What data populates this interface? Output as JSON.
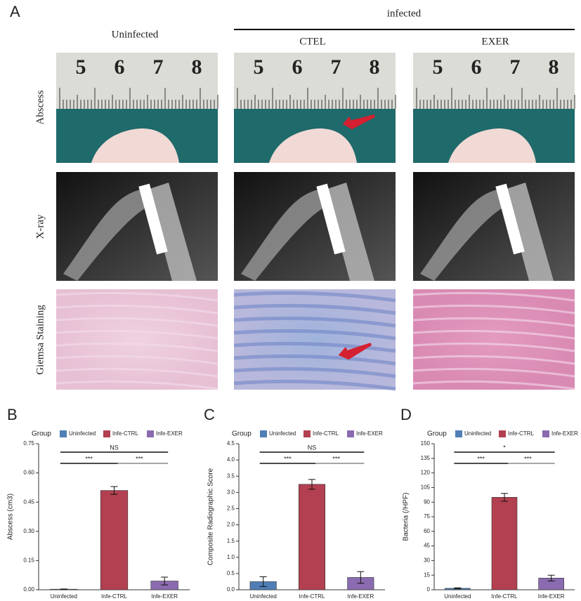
{
  "panel_a": {
    "label": "A",
    "group_label": "infected",
    "columns": [
      "Uninfected",
      "CTEL",
      "EXER"
    ],
    "rows": [
      "Abscess",
      "X-ray",
      "Giemsa Staining"
    ],
    "ruler_numbers": [
      "5",
      "6",
      "7",
      "8"
    ]
  },
  "chart_data": [
    {
      "type": "bar",
      "panel": "B",
      "legend_title": "Group",
      "categories": [
        "Uninfected",
        "Infe-CTRL",
        "Infe-EXER"
      ],
      "values": [
        0.003,
        0.51,
        0.045
      ],
      "errors": [
        0.001,
        0.02,
        0.02
      ],
      "colors": [
        "#4f7fb5",
        "#b24050",
        "#8a6bb0"
      ],
      "ylabel": "Abscess (cm3)",
      "ylim": [
        0,
        0.75
      ],
      "yticks": [
        {
          "value": 0,
          "label": "0.00"
        },
        {
          "value": 0.15,
          "label": "0.15"
        },
        {
          "value": 0.3,
          "label": "0.30"
        },
        {
          "value": 0.45,
          "label": "0.45"
        },
        {
          "value": 0.6,
          "label": "0.60"
        },
        {
          "value": 0.75,
          "label": "0.75"
        }
      ],
      "comparisons": [
        {
          "groups": [
            "Uninfected",
            "Infe-EXER"
          ],
          "label": "NS"
        },
        {
          "groups": [
            "Uninfected",
            "Infe-CTRL"
          ],
          "label": "***"
        },
        {
          "groups": [
            "Infe-CTRL",
            "Infe-EXER"
          ],
          "label": "***"
        }
      ]
    },
    {
      "type": "bar",
      "panel": "C",
      "legend_title": "Group",
      "categories": [
        "Uninfected",
        "Infe-CTRL",
        "Infe-EXER"
      ],
      "values": [
        0.25,
        3.25,
        0.38
      ],
      "errors": [
        0.15,
        0.15,
        0.18
      ],
      "colors": [
        "#4f7fb5",
        "#b24050",
        "#8a6bb0"
      ],
      "ylabel": "Composite Radiographic Score",
      "ylim": [
        0,
        4.5
      ],
      "yticks": [
        {
          "value": 0,
          "label": "0.0"
        },
        0.5,
        {
          "value": 1,
          "label": "1.0"
        },
        1.5,
        {
          "value": 2,
          "label": "2.0"
        },
        2.5,
        {
          "value": 3,
          "label": "3.0"
        },
        3.5,
        {
          "value": 4,
          "label": "4.0"
        },
        4.5
      ],
      "comparisons": [
        {
          "groups": [
            "Uninfected",
            "Infe-EXER"
          ],
          "label": "NS"
        },
        {
          "groups": [
            "Uninfected",
            "Infe-CTRL"
          ],
          "label": "***"
        },
        {
          "groups": [
            "Infe-CTRL",
            "Infe-EXER"
          ],
          "label": "***"
        }
      ]
    },
    {
      "type": "bar",
      "panel": "D",
      "legend_title": "Group",
      "categories": [
        "Uninfected",
        "Infe-CTRL",
        "Infe-EXER"
      ],
      "values": [
        1.5,
        95,
        12
      ],
      "errors": [
        0.5,
        4,
        3
      ],
      "colors": [
        "#4f7fb5",
        "#b24050",
        "#8a6bb0"
      ],
      "ylabel": "Bacteria (/HPF)",
      "ylim": [
        0,
        150
      ],
      "yticks": [
        0,
        15,
        30,
        45,
        60,
        75,
        90,
        105,
        120,
        135,
        150
      ],
      "comparisons": [
        {
          "groups": [
            "Uninfected",
            "Infe-EXER"
          ],
          "label": "*"
        },
        {
          "groups": [
            "Uninfected",
            "Infe-CTRL"
          ],
          "label": "***"
        },
        {
          "groups": [
            "Infe-CTRL",
            "Infe-EXER"
          ],
          "label": "***"
        }
      ]
    }
  ]
}
